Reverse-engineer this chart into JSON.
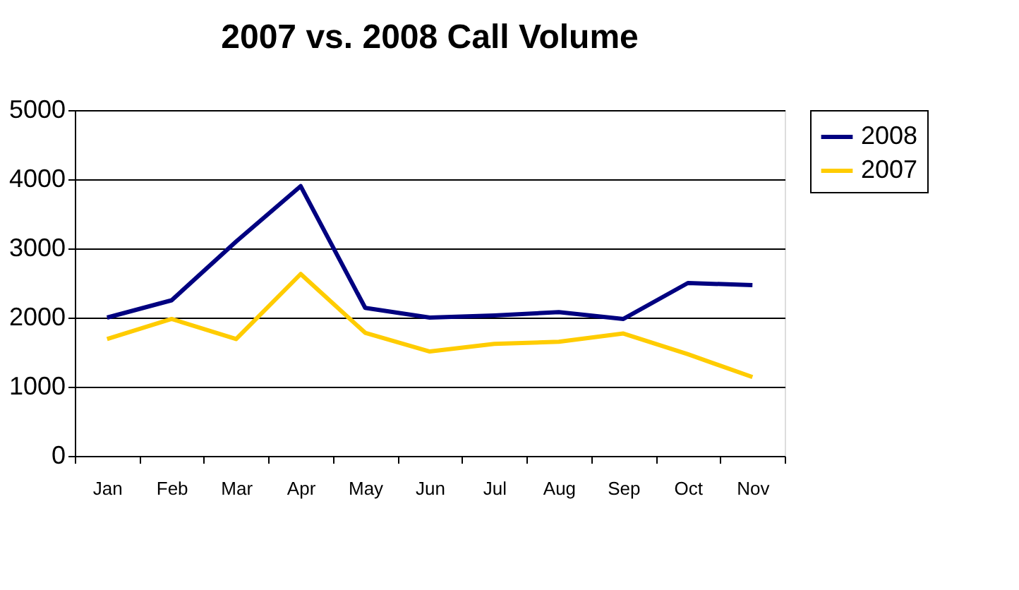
{
  "chart_data": {
    "type": "line",
    "title": "2007 vs. 2008 Call Volume",
    "categories": [
      "Jan",
      "Feb",
      "Mar",
      "Apr",
      "May",
      "Jun",
      "Jul",
      "Aug",
      "Sep",
      "Oct",
      "Nov"
    ],
    "series": [
      {
        "name": "2008",
        "color": "#000080",
        "values": [
          2000,
          2250,
          3100,
          3900,
          2140,
          2000,
          2030,
          2080,
          1980,
          2500,
          2470
        ]
      },
      {
        "name": "2007",
        "color": "#ffcc00",
        "values": [
          1690,
          1980,
          1690,
          2630,
          1780,
          1510,
          1620,
          1650,
          1770,
          1470,
          1140
        ]
      }
    ],
    "ylim": [
      0,
      5000
    ],
    "yticks": [
      0,
      1000,
      2000,
      3000,
      4000,
      5000
    ],
    "grid": "y",
    "legend": "right",
    "marker": "none",
    "line_style": "solid"
  }
}
